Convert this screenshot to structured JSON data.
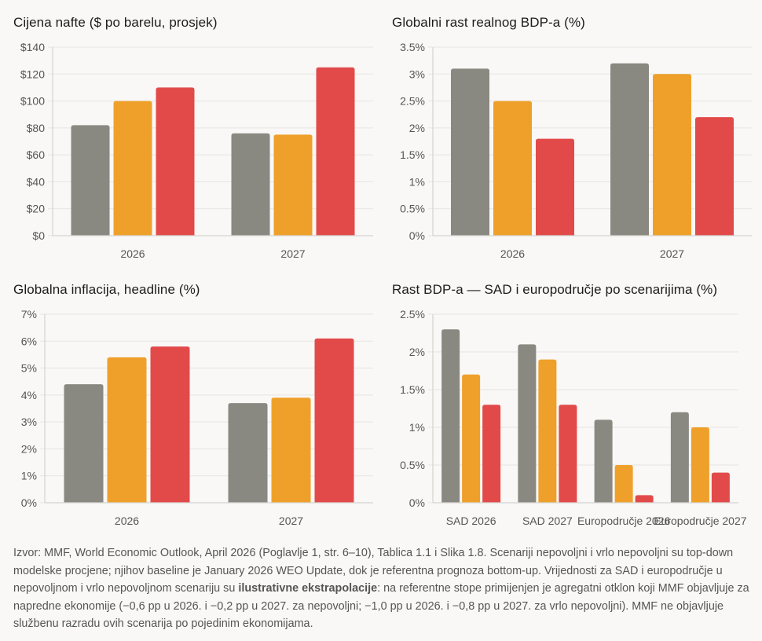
{
  "colors": {
    "baseline": "#8a8981",
    "adverse": "#efa02a",
    "severe": "#e24a4a"
  },
  "chart_data": [
    {
      "id": "oil",
      "type": "bar",
      "title": "Cijena nafte ($ po barelu, prosjek)",
      "categories": [
        "2026",
        "2027"
      ],
      "series": [
        {
          "name": "baseline",
          "values": [
            82,
            76
          ]
        },
        {
          "name": "adverse",
          "values": [
            100,
            75
          ]
        },
        {
          "name": "severe",
          "values": [
            110,
            125
          ]
        }
      ],
      "ylim": [
        0,
        140
      ],
      "yticks": [
        0,
        20,
        40,
        60,
        80,
        100,
        120,
        140
      ],
      "ytick_labels": [
        "$0",
        "$20",
        "$40",
        "$60",
        "$80",
        "$100",
        "$120",
        "$140"
      ],
      "xlabel": "",
      "ylabel": "",
      "grid": true,
      "legend": "none"
    },
    {
      "id": "gdp",
      "type": "bar",
      "title": "Globalni rast realnog BDP-a (%)",
      "categories": [
        "2026",
        "2027"
      ],
      "series": [
        {
          "name": "baseline",
          "values": [
            3.1,
            3.2
          ]
        },
        {
          "name": "adverse",
          "values": [
            2.5,
            3.0
          ]
        },
        {
          "name": "severe",
          "values": [
            1.8,
            2.2
          ]
        }
      ],
      "ylim": [
        0,
        3.5
      ],
      "yticks": [
        0,
        0.5,
        1,
        1.5,
        2,
        2.5,
        3,
        3.5
      ],
      "ytick_labels": [
        "0%",
        "0.5%",
        "1%",
        "1.5%",
        "2%",
        "2.5%",
        "3%",
        "3.5%"
      ],
      "xlabel": "",
      "ylabel": "",
      "grid": true,
      "legend": "none"
    },
    {
      "id": "inflation",
      "type": "bar",
      "title": "Globalna inflacija, headline (%)",
      "categories": [
        "2026",
        "2027"
      ],
      "series": [
        {
          "name": "baseline",
          "values": [
            4.4,
            3.7
          ]
        },
        {
          "name": "adverse",
          "values": [
            5.4,
            3.9
          ]
        },
        {
          "name": "severe",
          "values": [
            5.8,
            6.1
          ]
        }
      ],
      "ylim": [
        0,
        7
      ],
      "yticks": [
        0,
        1,
        2,
        3,
        4,
        5,
        6,
        7
      ],
      "ytick_labels": [
        "0%",
        "1%",
        "2%",
        "3%",
        "4%",
        "5%",
        "6%",
        "7%"
      ],
      "xlabel": "",
      "ylabel": "",
      "grid": true,
      "legend": "none"
    },
    {
      "id": "regional",
      "type": "bar",
      "title": "Rast BDP-a — SAD i europodručje po scenarijima (%)",
      "categories": [
        "SAD 2026",
        "SAD 2027",
        "Europodručje 2026",
        "Europodručje 2027"
      ],
      "series": [
        {
          "name": "baseline",
          "values": [
            2.3,
            2.1,
            1.1,
            1.2
          ]
        },
        {
          "name": "adverse",
          "values": [
            1.7,
            1.9,
            0.5,
            1.0
          ]
        },
        {
          "name": "severe",
          "values": [
            1.3,
            1.3,
            0.1,
            0.4
          ]
        }
      ],
      "ylim": [
        0,
        2.5
      ],
      "yticks": [
        0,
        0.5,
        1,
        1.5,
        2,
        2.5
      ],
      "ytick_labels": [
        "0%",
        "0.5%",
        "1%",
        "1.5%",
        "2%",
        "2.5%"
      ],
      "xlabel": "",
      "ylabel": "",
      "grid": true,
      "legend": "none"
    }
  ],
  "footer": {
    "text_before_bold": "Izvor: MMF, World Economic Outlook, April 2026 (Poglavlje 1, str. 6–10), Tablica 1.1 i Slika 1.8. Scenariji nepovoljni i vrlo nepovoljni su top-down modelske procjene; njihov baseline je January 2026 WEO Update, dok je referentna prognoza bottom-up. Vrijednosti za SAD i europodručje u nepovoljnom i vrlo nepovoljnom scenariju su ",
    "bold": "ilustrativne ekstrapolacije",
    "text_after_bold": ": na referentne stope primijenjen je agregatni otklon koji MMF objavljuje za napredne ekonomije (−0,6 pp u 2026. i −0,2 pp u 2027. za nepovoljni; −1,0 pp u 2026. i −0,8 pp u 2027. za vrlo nepovoljni). MMF ne objavljuje službenu razradu ovih scenarija po pojedinim ekonomijama."
  }
}
